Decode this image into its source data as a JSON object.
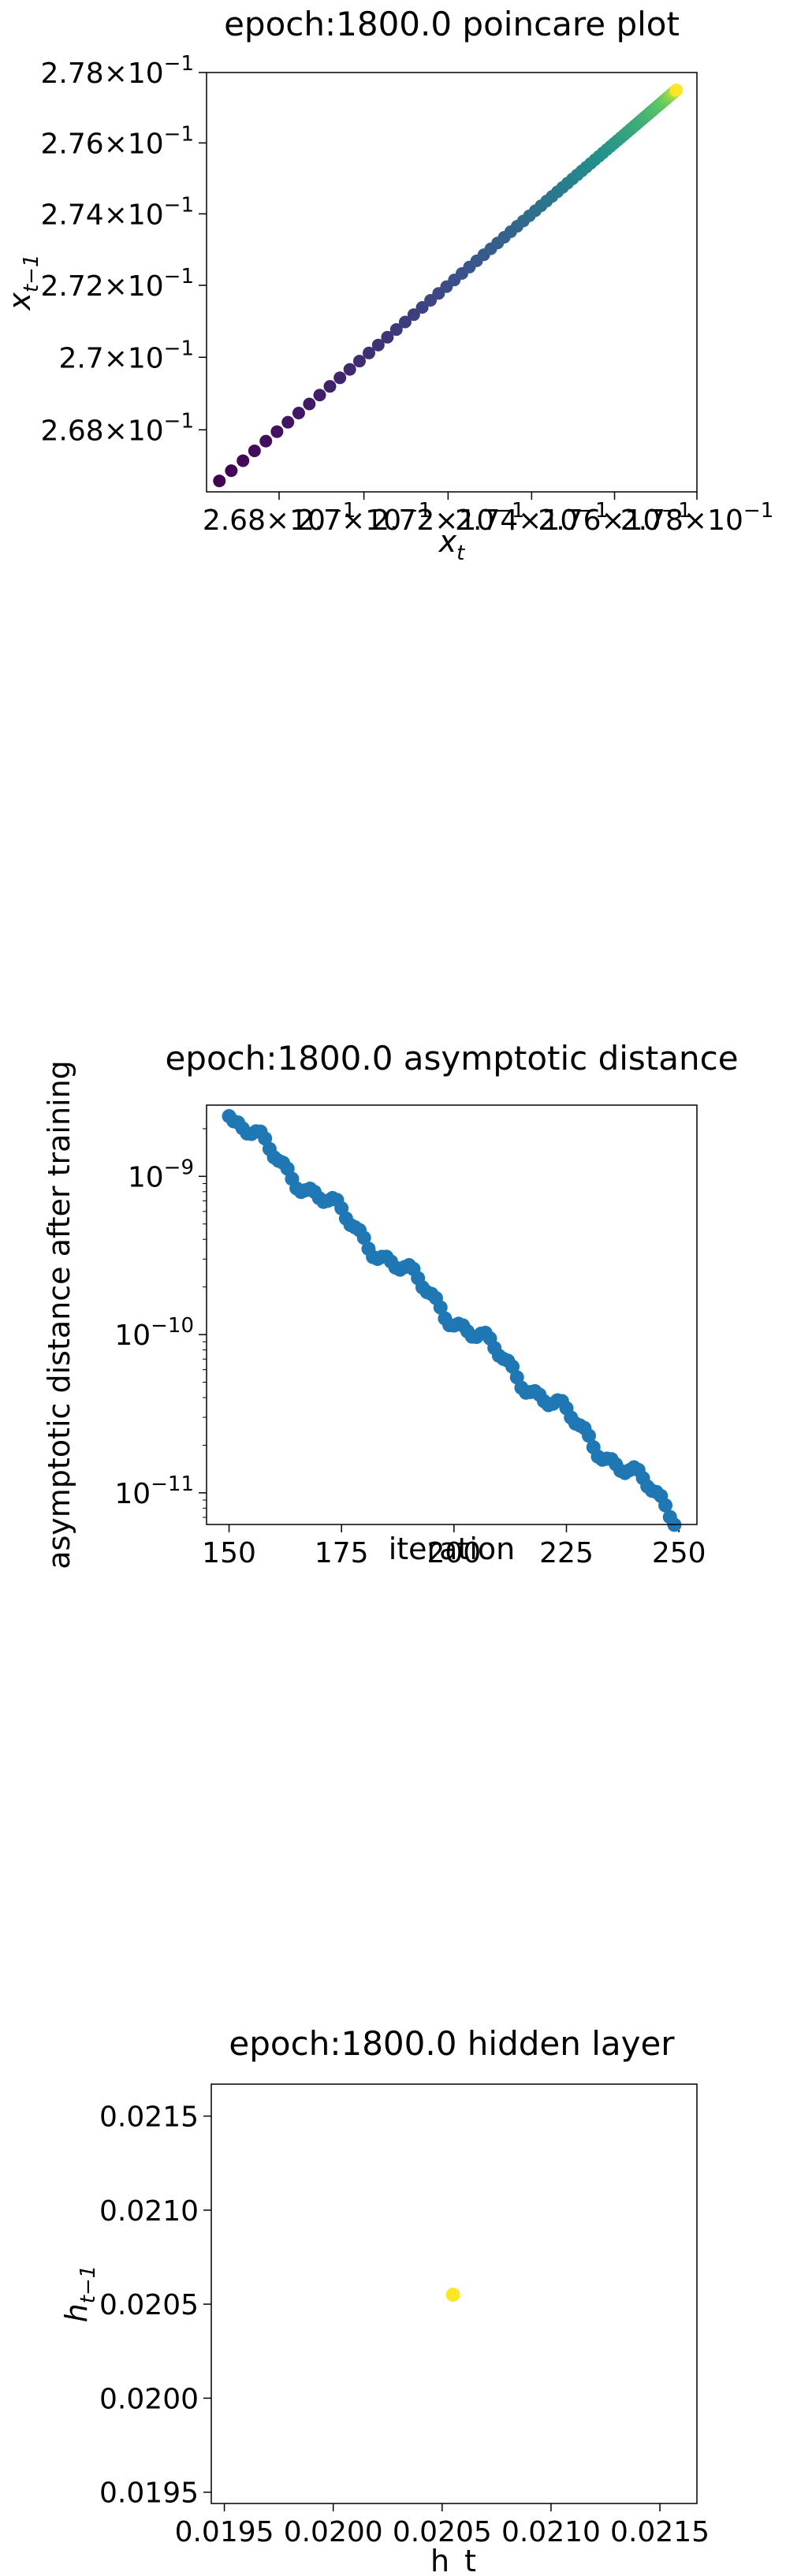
{
  "chart_data": [
    {
      "type": "scatter",
      "title": "epoch:1800.0 poincare plot",
      "xlabel": "x_t",
      "ylabel": "x_{t-1}",
      "log_scale": true,
      "xlim": [
        0.2663,
        0.278
      ],
      "ylim": [
        0.2663,
        0.278
      ],
      "x_ticks": [
        0.268,
        0.27,
        0.272,
        0.274,
        0.276,
        0.278
      ],
      "y_ticks": [
        0.268,
        0.27,
        0.272,
        0.274,
        0.276,
        0.278
      ],
      "x_tick_labels": [
        {
          "mant": "2.68",
          "exp": "-1"
        },
        {
          "mant": "2.7",
          "exp": "-1"
        },
        {
          "mant": "2.72",
          "exp": "-1"
        },
        {
          "mant": "2.74",
          "exp": "-1"
        },
        {
          "mant": "2.76",
          "exp": "-1"
        },
        {
          "mant": "2.78",
          "exp": "-1"
        }
      ],
      "y_tick_labels": [
        {
          "mant": "2.68",
          "exp": "-1"
        },
        {
          "mant": "2.7",
          "exp": "-1"
        },
        {
          "mant": "2.72",
          "exp": "-1"
        },
        {
          "mant": "2.74",
          "exp": "-1"
        },
        {
          "mant": "2.76",
          "exp": "-1"
        },
        {
          "mant": "2.78",
          "exp": "-1"
        }
      ],
      "grid": false,
      "colormap": "viridis",
      "x_first": 0.2666,
      "x_last": 0.2775,
      "point_count": 100
    },
    {
      "type": "scatter",
      "title": "epoch:1800.0 asymptotic distance",
      "xlabel": "iteration",
      "ylabel": "asymptotic distance after training",
      "log_scale_y": true,
      "xlim": [
        145,
        254
      ],
      "ylim_exp": [
        -11.2,
        -8.55
      ],
      "x_ticks": [
        150,
        175,
        200,
        225,
        250
      ],
      "y_ticks": [
        {
          "mant": "10",
          "exp": "-9",
          "value_exp": -9
        },
        {
          "mant": "10",
          "exp": "-10",
          "value_exp": -10
        },
        {
          "mant": "10",
          "exp": "-11",
          "value_exp": -11
        }
      ],
      "grid": false,
      "color": "#1f77b4",
      "x_range": [
        150,
        249
      ],
      "log10_start": -8.62,
      "log10_end": -11.13
    },
    {
      "type": "scatter",
      "title": "epoch:1800.0 hidden layer",
      "xlabel": "h_t",
      "ylabel": "h_{t-1}",
      "xlim": [
        0.01944,
        0.02167
      ],
      "ylim": [
        0.01944,
        0.02167
      ],
      "x_ticks": [
        "0.0195",
        "0.0200",
        "0.0205",
        "0.0210",
        "0.0215"
      ],
      "y_ticks": [
        "0.0195",
        "0.0200",
        "0.0205",
        "0.0210",
        "0.0215"
      ],
      "grid": false,
      "points": [
        {
          "x": 0.02055,
          "y": 0.02055,
          "color": "#fde725"
        }
      ]
    }
  ]
}
